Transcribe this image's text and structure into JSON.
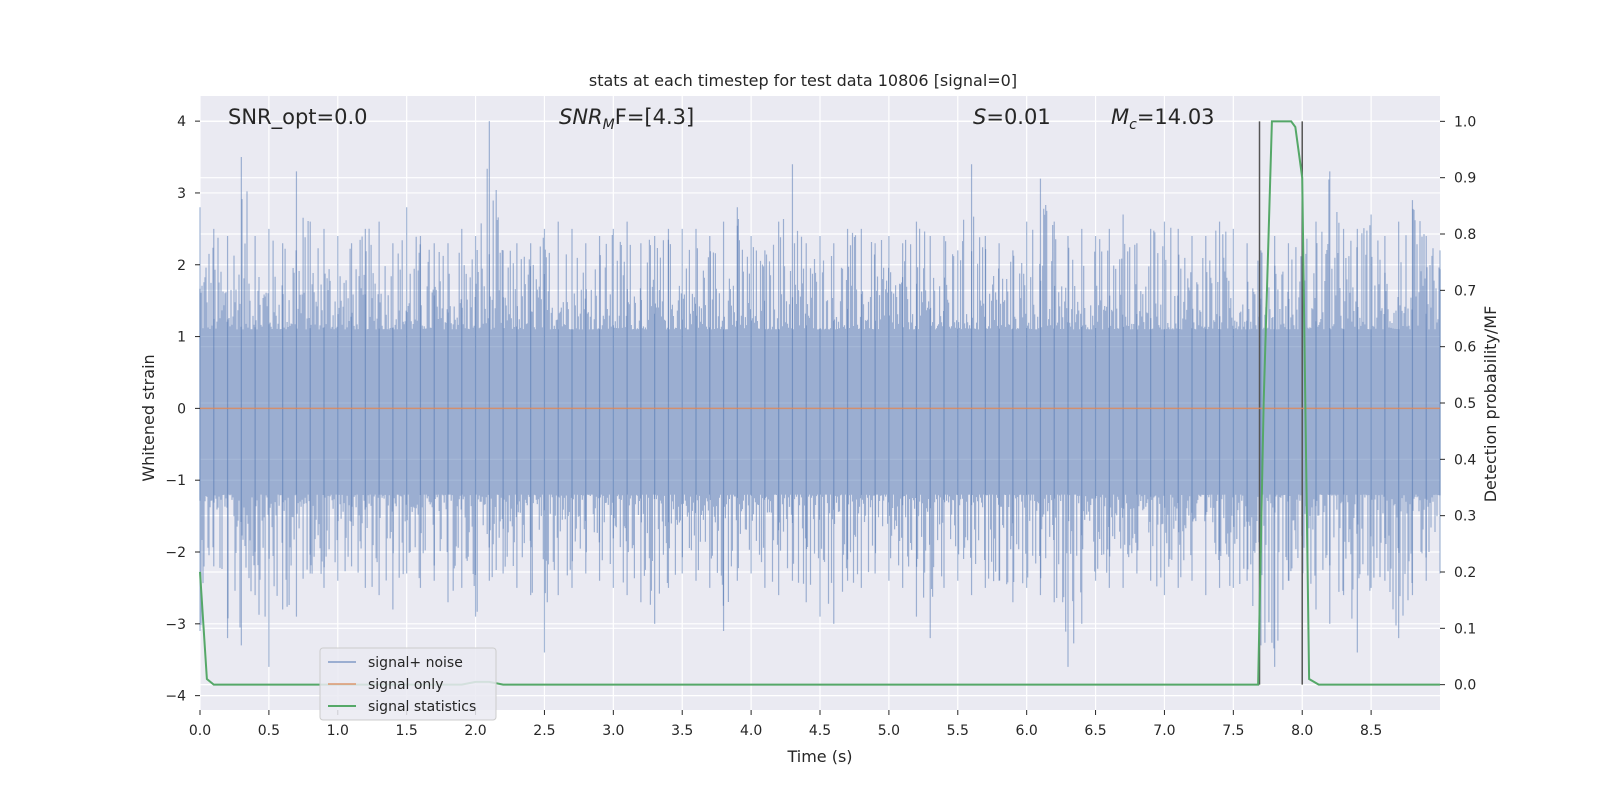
{
  "chart_data": {
    "type": "line",
    "title": "stats at each timestep for test data 10806 [signal=0]",
    "xlabel": "Time (s)",
    "ylabel": "Whitened strain",
    "ylabel_right": "Detection probability/MF",
    "xlim": [
      0.0,
      9.0
    ],
    "ylim": [
      -4.2,
      4.35
    ],
    "ylim_right": [
      -0.045,
      1.045
    ],
    "x_ticks": [
      "0.0",
      "0.5",
      "1.0",
      "1.5",
      "2.0",
      "2.5",
      "3.0",
      "3.5",
      "4.0",
      "4.5",
      "5.0",
      "5.5",
      "6.0",
      "6.5",
      "7.0",
      "7.5",
      "8.0",
      "8.5"
    ],
    "y_ticks": [
      "−4",
      "−3",
      "−2",
      "−1",
      "0",
      "1",
      "2",
      "3",
      "4"
    ],
    "y_ticks_right": [
      "0.0",
      "0.1",
      "0.2",
      "0.3",
      "0.4",
      "0.5",
      "0.6",
      "0.7",
      "0.8",
      "0.9",
      "1.0"
    ],
    "grid": true,
    "legend_position": "lower-left",
    "annotations": {
      "snr_opt": "SNR_opt=0.0",
      "snr_mf_main": "SNR",
      "snr_mf_sub": "M",
      "snr_mf_rest": "F=[4.3]",
      "s_italic": "S",
      "s_rest": "=0.01",
      "mc_italic": "M",
      "mc_sub": "c",
      "mc_rest": "=14.03"
    },
    "vertical_markers_x": [
      7.69,
      8.0
    ],
    "series": [
      {
        "name": "signal+ noise",
        "color": "#4c72b0",
        "axis": "left",
        "envelope_x": [
          0.0,
          0.1,
          0.2,
          0.3,
          0.4,
          0.5,
          0.6,
          0.7,
          0.8,
          0.9,
          1.0,
          1.1,
          1.2,
          1.3,
          1.4,
          1.5,
          1.6,
          1.7,
          1.8,
          1.9,
          2.0,
          2.1,
          2.2,
          2.3,
          2.4,
          2.5,
          2.6,
          2.7,
          2.8,
          2.9,
          3.0,
          3.1,
          3.2,
          3.3,
          3.4,
          3.5,
          3.6,
          3.7,
          3.8,
          3.9,
          4.0,
          4.1,
          4.2,
          4.3,
          4.4,
          4.5,
          4.6,
          4.7,
          4.8,
          4.9,
          5.0,
          5.1,
          5.2,
          5.3,
          5.4,
          5.5,
          5.6,
          5.7,
          5.8,
          5.9,
          6.0,
          6.1,
          6.2,
          6.3,
          6.4,
          6.5,
          6.6,
          6.7,
          6.8,
          6.9,
          7.0,
          7.1,
          7.2,
          7.3,
          7.4,
          7.5,
          7.6,
          7.7,
          7.8,
          7.9,
          8.0,
          8.1,
          8.2,
          8.3,
          8.4,
          8.5,
          8.6,
          8.7,
          8.8,
          8.9,
          9.0
        ],
        "envelope_max": [
          2.8,
          2.5,
          2.4,
          3.5,
          2.4,
          2.5,
          2.3,
          3.3,
          2.6,
          2.5,
          2.4,
          2.3,
          2.5,
          2.6,
          2.3,
          2.8,
          2.4,
          2.3,
          2.3,
          2.5,
          2.4,
          4.0,
          2.2,
          2.3,
          2.3,
          2.5,
          2.6,
          2.5,
          2.3,
          2.4,
          2.5,
          2.6,
          2.3,
          2.4,
          2.5,
          2.5,
          2.5,
          2.4,
          2.6,
          2.8,
          2.4,
          2.2,
          2.6,
          3.4,
          2.3,
          2.4,
          2.3,
          2.5,
          2.5,
          2.3,
          2.4,
          2.3,
          2.6,
          2.4,
          2.4,
          2.2,
          3.4,
          2.4,
          2.3,
          2.2,
          2.6,
          3.2,
          2.6,
          2.4,
          2.5,
          2.4,
          2.5,
          2.7,
          2.3,
          2.5,
          2.6,
          2.5,
          2.4,
          2.4,
          2.6,
          2.5,
          2.3,
          2.2,
          2.4,
          2.3,
          2.5,
          2.6,
          3.3,
          2.5,
          2.5,
          2.7,
          2.4,
          2.6,
          2.9,
          2.4,
          2.2
        ],
        "envelope_min": [
          -3.1,
          -2.2,
          -3.2,
          -3.3,
          -2.6,
          -3.6,
          -2.8,
          -2.9,
          -2.3,
          -2.5,
          -2.4,
          -2.2,
          -2.5,
          -2.6,
          -2.8,
          -2.3,
          -2.5,
          -2.4,
          -2.7,
          -2.5,
          -2.9,
          -2.4,
          -2.3,
          -2.5,
          -2.6,
          -3.4,
          -2.6,
          -2.5,
          -2.3,
          -2.4,
          -2.5,
          -2.6,
          -2.7,
          -3.0,
          -2.5,
          -2.3,
          -2.4,
          -2.5,
          -3.1,
          -2.4,
          -2.3,
          -2.5,
          -2.6,
          -2.4,
          -2.7,
          -2.9,
          -3.0,
          -2.4,
          -2.5,
          -2.3,
          -2.4,
          -2.5,
          -2.9,
          -3.2,
          -2.5,
          -2.4,
          -2.6,
          -2.5,
          -2.4,
          -2.7,
          -2.5,
          -2.6,
          -2.7,
          -3.6,
          -3.0,
          -2.4,
          -2.5,
          -2.5,
          -2.3,
          -2.4,
          -2.6,
          -2.5,
          -2.4,
          -2.6,
          -2.5,
          -2.5,
          -2.4,
          -3.3,
          -3.6,
          -2.4,
          -2.5,
          -2.8,
          -3.0,
          -2.6,
          -3.4,
          -2.5,
          -2.4,
          -3.2,
          -2.6,
          -2.4,
          -2.3
        ]
      },
      {
        "name": "signal only",
        "color": "#dd8452",
        "axis": "left",
        "x": [
          0.0,
          9.0
        ],
        "y": [
          0.0,
          0.0
        ]
      },
      {
        "name": "signal statistics",
        "color": "#55a868",
        "axis": "right",
        "x": [
          0.0,
          0.05,
          0.1,
          0.2,
          0.3,
          0.4,
          0.5,
          0.6,
          0.8,
          1.0,
          1.2,
          1.4,
          1.6,
          1.8,
          1.9,
          2.0,
          2.1,
          2.2,
          2.3,
          2.5,
          3.0,
          3.5,
          4.0,
          4.5,
          5.0,
          5.5,
          6.0,
          6.5,
          7.0,
          7.5,
          7.68,
          7.72,
          7.78,
          7.85,
          7.92,
          7.95,
          8.0,
          8.05,
          8.12,
          8.2,
          8.5,
          9.0
        ],
        "y": [
          0.2,
          0.01,
          0.0,
          0.0,
          0.0,
          0.0,
          0.0,
          0.0,
          0.0,
          0.0,
          0.0,
          0.0,
          0.0,
          0.0,
          0.0,
          0.005,
          0.005,
          0.0,
          0.0,
          0.0,
          0.0,
          0.0,
          0.0,
          0.0,
          0.0,
          0.0,
          0.0,
          0.0,
          0.0,
          0.0,
          0.0,
          0.5,
          1.0,
          1.0,
          1.0,
          0.99,
          0.9,
          0.01,
          0.0,
          0.0,
          0.0,
          0.0
        ]
      }
    ]
  }
}
